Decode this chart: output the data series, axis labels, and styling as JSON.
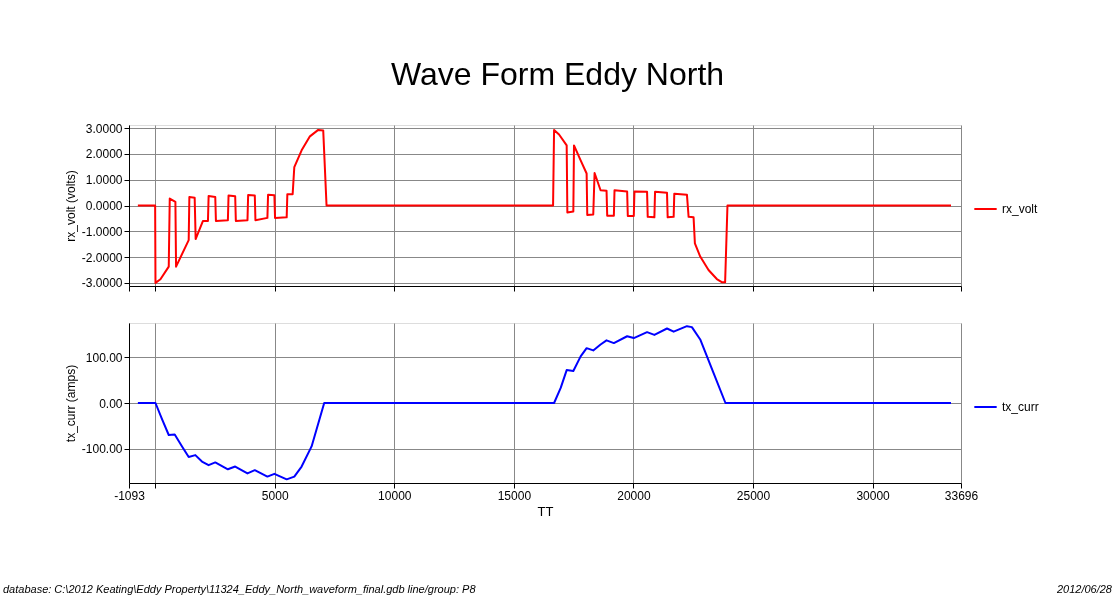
{
  "chart_data": [
    {
      "type": "line",
      "title": "Wave Form Eddy North",
      "ylabel": "rx_volt (volts)",
      "xlim": [
        -1093,
        33696
      ],
      "xticks": [
        {
          "value": -1093,
          "label": null
        },
        {
          "value": 0,
          "label": null
        },
        {
          "value": 5000,
          "label": null
        },
        {
          "value": 10000,
          "label": null
        },
        {
          "value": 15000,
          "label": null
        },
        {
          "value": 20000,
          "label": null
        },
        {
          "value": 25000,
          "label": null
        },
        {
          "value": 30000,
          "label": null
        },
        {
          "value": 33696,
          "label": null
        }
      ],
      "ylim": [
        -3.12,
        3.12
      ],
      "yticks": [
        {
          "value": -3,
          "label": "-3.0000"
        },
        {
          "value": -2,
          "label": "-2.0000"
        },
        {
          "value": -1,
          "label": "-1.0000"
        },
        {
          "value": 0,
          "label": "0.0000"
        },
        {
          "value": 1,
          "label": "1.0000"
        },
        {
          "value": 2,
          "label": "2.0000"
        },
        {
          "value": 3,
          "label": "3.0000"
        }
      ],
      "grid": true,
      "legend": "right",
      "tick_labels": "y",
      "series": [
        {
          "name": "rx_volt",
          "color": "#ff0000",
          "x": [
            -722,
            0,
            14,
            222,
            569,
            611,
            847,
            875,
            1403,
            1431,
            1653,
            1694,
            2000,
            2208,
            2236,
            2514,
            2542,
            3042,
            3069,
            3347,
            3375,
            3861,
            3889,
            4167,
            4194,
            4694,
            4722,
            4986,
            5014,
            5500,
            5528,
            5750,
            5819,
            6125,
            6472,
            6819,
            7028,
            7167,
            16639,
            16681,
            16889,
            17208,
            17236,
            17486,
            17514,
            17792,
            18042,
            18069,
            18319,
            18375,
            18625,
            18875,
            18903,
            19181,
            19208,
            19736,
            19764,
            20014,
            20042,
            20569,
            20597,
            20875,
            20903,
            21403,
            21431,
            21681,
            21708,
            22236,
            22306,
            22514,
            22569,
            22792,
            23139,
            23486,
            23694,
            23833,
            23931,
            33278
          ],
          "values": [
            0,
            0,
            -3.0,
            -2.86,
            -2.37,
            0.27,
            0.14,
            -2.37,
            -1.34,
            0.33,
            0.3,
            -1.3,
            -0.6,
            -0.6,
            0.37,
            0.33,
            -0.6,
            -0.57,
            0.39,
            0.36,
            -0.6,
            -0.57,
            0.41,
            0.39,
            -0.57,
            -0.48,
            0.42,
            0.4,
            -0.48,
            -0.46,
            0.44,
            0.44,
            1.49,
            2.14,
            2.68,
            2.93,
            2.91,
            0,
            0,
            2.93,
            2.75,
            2.33,
            -0.27,
            -0.23,
            2.33,
            1.75,
            1.24,
            -0.37,
            -0.35,
            1.26,
            0.59,
            0.57,
            -0.4,
            -0.4,
            0.59,
            0.54,
            -0.41,
            -0.41,
            0.54,
            0.53,
            -0.44,
            -0.46,
            0.53,
            0.49,
            -0.46,
            -0.44,
            0.46,
            0.42,
            -0.44,
            -0.46,
            -1.47,
            -1.98,
            -2.5,
            -2.85,
            -2.97,
            -2.97,
            0,
            0
          ]
        }
      ]
    },
    {
      "type": "line",
      "xlabel": "TT",
      "ylabel": "tx_curr (amps)",
      "xlim": [
        -1093,
        33696
      ],
      "xticks": [
        -1093,
        {
          "value": 0,
          "label": null
        },
        5000,
        10000,
        15000,
        20000,
        25000,
        30000,
        33696
      ],
      "ylim": [
        -175,
        175
      ],
      "yticks": [
        {
          "value": -100,
          "label": "-100.00"
        },
        {
          "value": 0,
          "label": "0.00"
        },
        {
          "value": 100,
          "label": "100.00"
        }
      ],
      "grid": true,
      "legend": "right",
      "series": [
        {
          "name": "tx_curr",
          "color": "#0000ff",
          "x": [
            -722,
            14,
            292,
            569,
            819,
            1125,
            1403,
            1681,
            1958,
            2236,
            2514,
            3042,
            3347,
            3861,
            4167,
            4694,
            4986,
            5500,
            5819,
            6125,
            6542,
            7069,
            16681,
            16958,
            17208,
            17486,
            17792,
            18042,
            18319,
            18625,
            18875,
            19181,
            19736,
            20014,
            20569,
            20875,
            21403,
            21681,
            22236,
            22444,
            22792,
            23347,
            23847,
            33278
          ],
          "values": [
            0,
            0,
            -36,
            -70,
            -69,
            -95,
            -118,
            -114,
            -128,
            -136,
            -130,
            -145,
            -139,
            -154,
            -147,
            -161,
            -155,
            -167,
            -161,
            -139,
            -95,
            0,
            0,
            33,
            72,
            70,
            102,
            120,
            115,
            128,
            137,
            131,
            146,
            142,
            155,
            149,
            163,
            156,
            168,
            166,
            139,
            66,
            0,
            0
          ]
        }
      ],
      "annotations": [
        "database: C:\\2012 Keating\\Eddy Property\\11324_Eddy_North_waveform_final.gdb  line/group: P8",
        "2012/06/28"
      ]
    }
  ]
}
